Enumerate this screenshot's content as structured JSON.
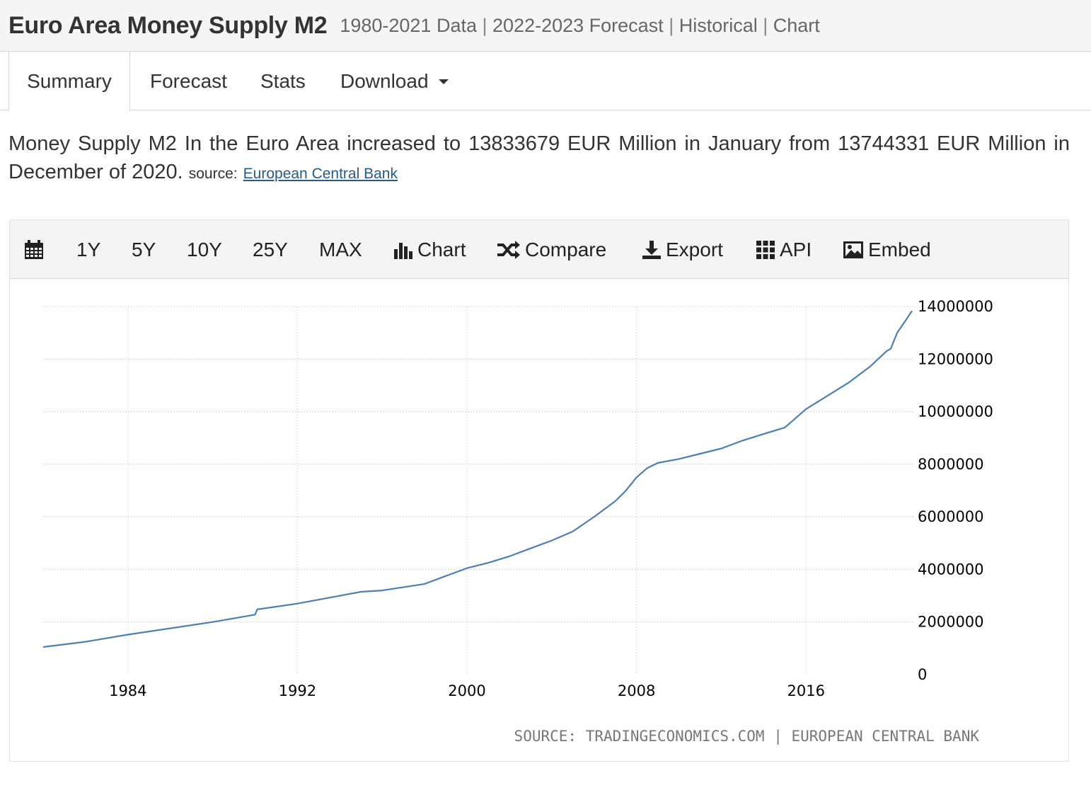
{
  "header": {
    "title": "Euro Area Money Supply M2",
    "subtitle_parts": [
      "1980-2021 Data",
      "2022-2023 Forecast",
      "Historical",
      "Chart"
    ]
  },
  "tabs": [
    {
      "label": "Summary",
      "active": true
    },
    {
      "label": "Forecast",
      "active": false
    },
    {
      "label": "Stats",
      "active": false
    },
    {
      "label": "Download",
      "active": false,
      "dropdown": true
    }
  ],
  "summary": {
    "text": "Money Supply M2 In the Euro Area increased to 13833679 EUR Million in January from 13744331 EUR Million in December of 2020.",
    "source_label": "source:",
    "source_link": "European Central Bank"
  },
  "toolbar": {
    "calendar_icon": "calendar-icon",
    "ranges": [
      "1Y",
      "5Y",
      "10Y",
      "25Y",
      "MAX"
    ],
    "chart": "Chart",
    "compare": "Compare",
    "export": "Export",
    "api": "API",
    "embed": "Embed"
  },
  "chart_data": {
    "type": "line",
    "title": "",
    "xlabel": "",
    "ylabel": "",
    "x_ticks": [
      "1984",
      "1992",
      "2000",
      "2008",
      "2016"
    ],
    "y_ticks": [
      "14000000",
      "12000000",
      "10000000",
      "8000000",
      "6000000",
      "4000000",
      "2000000",
      "0"
    ],
    "xlim": [
      1980,
      2021.1
    ],
    "ylim": [
      0,
      14000000
    ],
    "grid": true,
    "line_color": "#4a7fb5",
    "series": [
      {
        "x": [
          1980.0,
          1982.0,
          1984.0,
          1986.0,
          1988.0,
          1990.0,
          1990.1,
          1992.0,
          1994.0,
          1995.0,
          1996.0,
          1998.0,
          1999.0,
          2000.0,
          2001.0,
          2002.0,
          2003.0,
          2004.0,
          2005.0,
          2006.0,
          2007.0,
          2007.5,
          2008.0,
          2008.5,
          2009.0,
          2010.0,
          2011.0,
          2012.0,
          2013.0,
          2014.0,
          2015.0,
          2016.0,
          2017.0,
          2018.0,
          2019.0,
          2019.8,
          2020.0,
          2020.3,
          2020.6,
          2021.0
        ],
        "y": [
          1050000,
          1250000,
          1520000,
          1760000,
          2000000,
          2280000,
          2480000,
          2700000,
          3000000,
          3150000,
          3200000,
          3450000,
          3750000,
          4050000,
          4250000,
          4500000,
          4800000,
          5100000,
          5450000,
          6000000,
          6600000,
          7000000,
          7500000,
          7850000,
          8050000,
          8200000,
          8400000,
          8600000,
          8900000,
          9150000,
          9400000,
          10100000,
          10600000,
          11100000,
          11700000,
          12300000,
          12400000,
          13000000,
          13350000,
          13833679
        ]
      }
    ],
    "source_note": "SOURCE: TRADINGECONOMICS.COM | EUROPEAN CENTRAL BANK"
  }
}
